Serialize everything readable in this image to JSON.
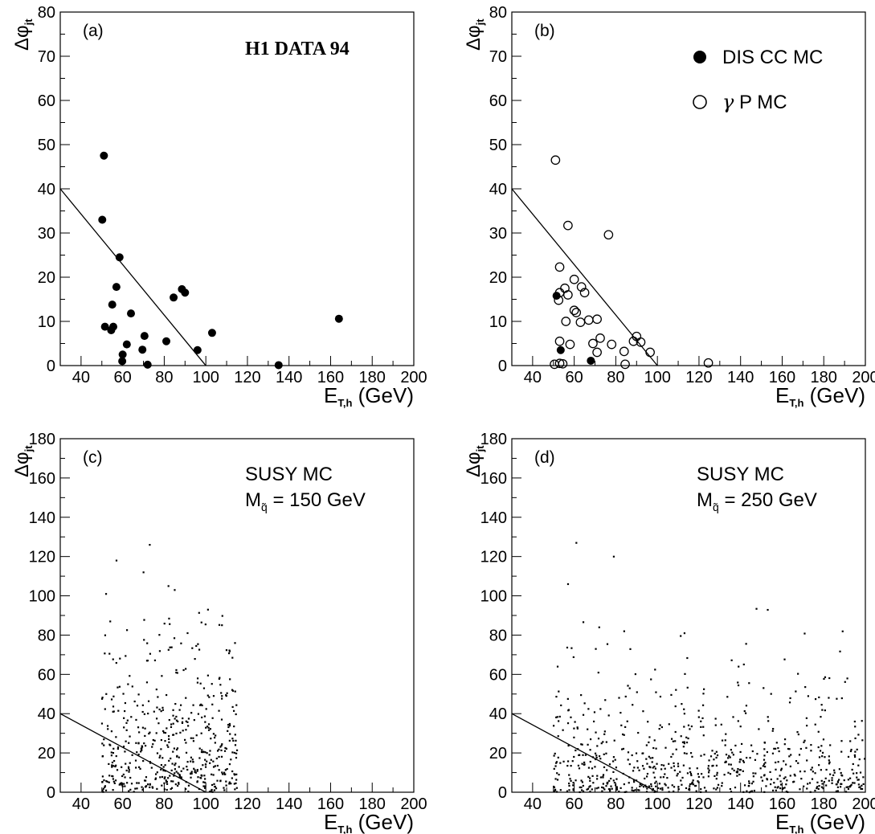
{
  "figure": {
    "panels": [
      "a",
      "b",
      "c",
      "d"
    ]
  },
  "chart_data": [
    {
      "id": "a",
      "type": "scatter",
      "panel_label": "(a)",
      "title": "H1 DATA 94",
      "xlabel": {
        "main": "E",
        "sub": "T,h",
        "unit": " (GeV)"
      },
      "ylabel": {
        "main": "Δφ",
        "sub": "jt"
      },
      "xlim": [
        30,
        200
      ],
      "ylim": [
        0,
        80
      ],
      "xticks": [
        40,
        60,
        80,
        100,
        120,
        140,
        160,
        180,
        200
      ],
      "yticks": [
        0,
        10,
        20,
        30,
        40,
        50,
        60,
        70,
        80
      ],
      "cut_line": {
        "x": [
          30,
          100
        ],
        "y": [
          40,
          0
        ]
      },
      "marker_style": "filled",
      "series": [
        {
          "marker": "filled",
          "points": [
            [
              51.0,
              47.5
            ],
            [
              50.2,
              33.0
            ],
            [
              58.5,
              24.5
            ],
            [
              57.0,
              17.8
            ],
            [
              55.0,
              13.8
            ],
            [
              51.5,
              8.8
            ],
            [
              54.5,
              8.0
            ],
            [
              55.5,
              8.8
            ],
            [
              64.0,
              11.8
            ],
            [
              60.0,
              2.5
            ],
            [
              59.8,
              1.0
            ],
            [
              62.0,
              4.8
            ],
            [
              70.5,
              6.7
            ],
            [
              69.5,
              3.6
            ],
            [
              72.0,
              0.2
            ],
            [
              84.5,
              15.4
            ],
            [
              88.5,
              17.3
            ],
            [
              90.0,
              16.5
            ],
            [
              81.0,
              5.5
            ],
            [
              96.0,
              3.5
            ],
            [
              103.0,
              7.4
            ],
            [
              135.0,
              0.1
            ],
            [
              164.0,
              10.6
            ]
          ]
        }
      ]
    },
    {
      "id": "b",
      "type": "scatter",
      "panel_label": "(b)",
      "xlabel": {
        "main": "E",
        "sub": "T,h",
        "unit": " (GeV)"
      },
      "ylabel": {
        "main": "Δφ",
        "sub": "jt"
      },
      "xlim": [
        30,
        200
      ],
      "ylim": [
        0,
        80
      ],
      "xticks": [
        40,
        60,
        80,
        100,
        120,
        140,
        160,
        180,
        200
      ],
      "yticks": [
        0,
        10,
        20,
        30,
        40,
        50,
        60,
        70,
        80
      ],
      "cut_line": {
        "x": [
          30,
          100
        ],
        "y": [
          40,
          0
        ]
      },
      "legend": [
        {
          "marker": "filled",
          "label": "DIS CC MC"
        },
        {
          "marker": "open",
          "label_greek": "γ",
          "label": " P MC"
        }
      ],
      "series": [
        {
          "name": "DIS CC MC",
          "marker": "filled",
          "points": [
            [
              51.5,
              15.8
            ],
            [
              53.5,
              3.5
            ],
            [
              68.0,
              1.1
            ]
          ]
        },
        {
          "name": "γ P MC",
          "marker": "open",
          "points": [
            [
              51.0,
              46.5
            ],
            [
              57.0,
              31.7
            ],
            [
              76.5,
              29.6
            ],
            [
              53.0,
              22.3
            ],
            [
              55.5,
              17.5
            ],
            [
              53.0,
              16.5
            ],
            [
              52.5,
              14.8
            ],
            [
              57.0,
              16.0
            ],
            [
              60.0,
              19.5
            ],
            [
              63.5,
              17.8
            ],
            [
              65.0,
              16.5
            ],
            [
              60.0,
              12.5
            ],
            [
              61.0,
              12.0
            ],
            [
              56.0,
              10.0
            ],
            [
              63.0,
              9.8
            ],
            [
              67.0,
              10.3
            ],
            [
              71.0,
              10.5
            ],
            [
              58.0,
              4.8
            ],
            [
              53.0,
              5.5
            ],
            [
              69.0,
              5.0
            ],
            [
              72.5,
              6.2
            ],
            [
              78.0,
              4.8
            ],
            [
              71.0,
              3.0
            ],
            [
              84.0,
              3.2
            ],
            [
              88.5,
              5.5
            ],
            [
              90.0,
              6.6
            ],
            [
              92.0,
              5.3
            ],
            [
              96.5,
              3.0
            ],
            [
              50.5,
              0.3
            ],
            [
              53.0,
              0.5
            ],
            [
              54.5,
              0.4
            ],
            [
              84.5,
              0.3
            ],
            [
              124.5,
              0.6
            ]
          ]
        }
      ]
    },
    {
      "id": "c",
      "type": "scatter",
      "panel_label": "(c)",
      "legend_text": [
        "SUSY MC",
        "M",
        "q̃",
        " = 150 GeV"
      ],
      "xlabel": {
        "main": "E",
        "sub": "T,h",
        "unit": " (GeV)"
      },
      "ylabel": {
        "main": "Δφ",
        "sub": "jt"
      },
      "xlim": [
        30,
        200
      ],
      "ylim": [
        0,
        180
      ],
      "xticks": [
        40,
        60,
        80,
        100,
        120,
        140,
        160,
        180,
        200
      ],
      "yticks": [
        0,
        20,
        40,
        60,
        80,
        100,
        120,
        140,
        160,
        180
      ],
      "cut_line": {
        "x": [
          30,
          100
        ],
        "y": [
          40,
          0
        ]
      },
      "marker_style": "dot",
      "distribution": {
        "x_range": [
          50,
          115
        ],
        "y_mean": 28,
        "n_points": 520,
        "seed": 7
      },
      "notable_points": [
        [
          73,
          126
        ],
        [
          57,
          118
        ],
        [
          70,
          112
        ],
        [
          82,
          105
        ],
        [
          85,
          103
        ],
        [
          52,
          101
        ],
        [
          101,
          93
        ],
        [
          54,
          87
        ],
        [
          114,
          76
        ]
      ]
    },
    {
      "id": "d",
      "type": "scatter",
      "panel_label": "(d)",
      "legend_text": [
        "SUSY MC",
        "M",
        "q̃",
        " = 250 GeV"
      ],
      "xlabel": {
        "main": "E",
        "sub": "T,h",
        "unit": " (GeV)"
      },
      "ylabel": {
        "main": "Δφ",
        "sub": "jt"
      },
      "xlim": [
        30,
        200
      ],
      "ylim": [
        0,
        180
      ],
      "xticks": [
        40,
        60,
        80,
        100,
        120,
        140,
        160,
        180,
        200
      ],
      "yticks": [
        0,
        20,
        40,
        60,
        80,
        100,
        120,
        140,
        160,
        180
      ],
      "cut_line": {
        "x": [
          30,
          100
        ],
        "y": [
          40,
          0
        ]
      },
      "marker_style": "dot",
      "distribution": {
        "x_range": [
          50,
          200
        ],
        "y_mean": 18,
        "n_points": 720,
        "seed": 11
      },
      "notable_points": [
        [
          61,
          127
        ],
        [
          79,
          120
        ],
        [
          57,
          106
        ],
        [
          113,
          81
        ],
        [
          139,
          64
        ],
        [
          52,
          64
        ],
        [
          84,
          82
        ],
        [
          72,
          84
        ]
      ]
    }
  ]
}
